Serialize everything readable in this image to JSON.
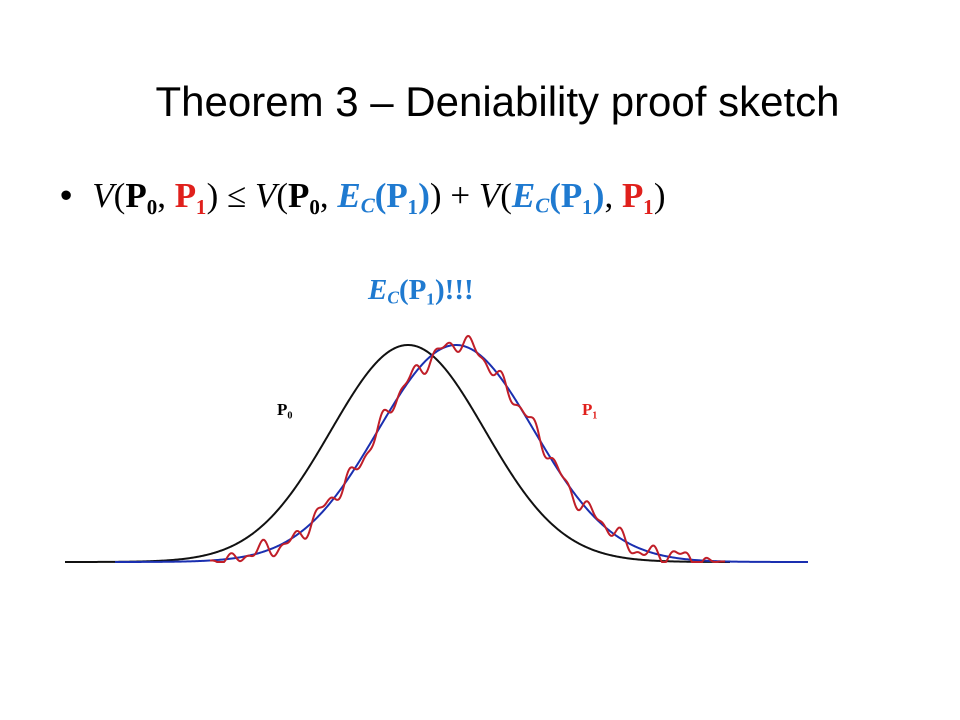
{
  "header": {
    "title": "Theorem 3 – Deniability proof sketch"
  },
  "bullet": {
    "parts": [
      "V",
      "(",
      "P₀",
      ", ",
      "P₁",
      ") ≤ ",
      "V",
      "(",
      "P₀",
      ", ",
      "E",
      "C",
      "(P₁)",
      ") + ",
      "V",
      "(",
      "E",
      "C",
      "(P₁)",
      ", ",
      "P₁",
      ")"
    ]
  },
  "figure": {
    "highlight": {
      "parts": [
        "E",
        "C",
        "(P₁)!!!"
      ]
    },
    "labels": [
      "P₀",
      "P₁"
    ]
  }
}
